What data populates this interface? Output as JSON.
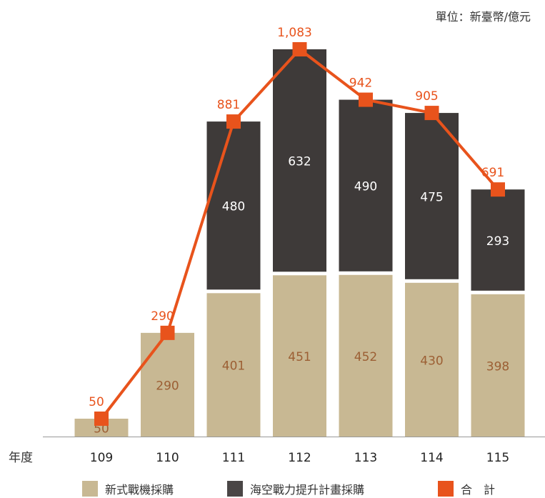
{
  "unit_label": "單位：新臺幣/億元",
  "x_axis_label": "年度",
  "legend": {
    "new_fighter": "新式戰機採購",
    "sea_air": "海空戰力提升計畫採購",
    "total": "合　計"
  },
  "colors": {
    "new_fighter": "#c8b893",
    "sea_air": "#3e3a39",
    "total": "#e8531c",
    "new_fighter_label": "#9c5f34",
    "axis": "#999999"
  },
  "chart_data": {
    "type": "bar",
    "stacked": true,
    "categories": [
      "109",
      "110",
      "111",
      "112",
      "113",
      "114",
      "115"
    ],
    "series": [
      {
        "name": "新式戰機採購",
        "type": "bar",
        "values": [
          50,
          290,
          401,
          451,
          452,
          430,
          398
        ]
      },
      {
        "name": "海空戰力提升計畫採購",
        "type": "bar",
        "values": [
          null,
          null,
          480,
          632,
          490,
          475,
          293
        ]
      },
      {
        "name": "合　計",
        "type": "line",
        "values": [
          50,
          290,
          881,
          1083,
          942,
          905,
          691
        ],
        "labels": [
          "50",
          "290",
          "881",
          "1,083",
          "942",
          "905",
          "691"
        ]
      }
    ],
    "ylim": [
      0,
      1150
    ]
  }
}
